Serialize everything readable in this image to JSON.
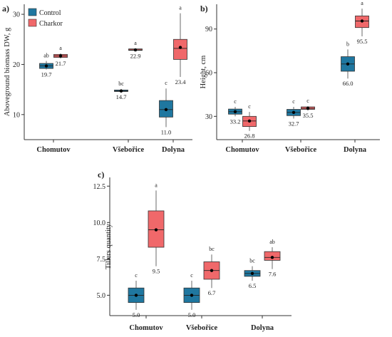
{
  "legend": [
    {
      "name": "Control",
      "color": "#1F77A0"
    },
    {
      "name": "Charkor",
      "color": "#F0686A"
    }
  ],
  "chart_data": [
    {
      "panel": "a)",
      "type": "box",
      "ylabel": "Aboveground biomass DW, g",
      "ylim": [
        5,
        32
      ],
      "yticks": [
        10,
        20,
        30
      ],
      "categories": [
        "Chomutov",
        "Všebořice",
        "Dolyna"
      ],
      "series": [
        {
          "name": "Control",
          "boxes": [
            {
              "whisker_low": 19.0,
              "q1": 19.2,
              "median": 19.7,
              "q3": 20.2,
              "whisker_high": 20.7,
              "mean": 19.7,
              "mean_label": "19.7",
              "letter": "ab"
            },
            {
              "whisker_low": 14.5,
              "q1": 14.6,
              "median": 14.7,
              "q3": 14.9,
              "whisker_high": 15.1,
              "mean": 14.7,
              "mean_label": "14.7",
              "letter": "bc"
            },
            {
              "whisker_low": 7.5,
              "q1": 9.5,
              "median": 11.0,
              "q3": 12.8,
              "whisker_high": 15.2,
              "mean": 11.0,
              "mean_label": "11.0",
              "letter": "c"
            }
          ]
        },
        {
          "name": "Charkor",
          "boxes": [
            {
              "whisker_low": 21.2,
              "q1": 21.4,
              "median": 21.7,
              "q3": 22.0,
              "whisker_high": 22.2,
              "mean": 21.7,
              "mean_label": "21.7",
              "letter": "a"
            },
            {
              "whisker_low": 22.7,
              "q1": 22.8,
              "median": 22.9,
              "q3": 23.1,
              "whisker_high": 23.2,
              "mean": 22.9,
              "mean_label": "22.9",
              "letter": "a"
            },
            {
              "whisker_low": 17.5,
              "q1": 21.0,
              "median": 23.2,
              "q3": 25.0,
              "whisker_high": 30.2,
              "mean": 23.4,
              "mean_label": "23.4",
              "letter": "a"
            }
          ]
        }
      ]
    },
    {
      "panel": "b)",
      "type": "box",
      "ylabel": "Height, cm",
      "ylim": [
        14,
        107
      ],
      "yticks": [
        30,
        60,
        90
      ],
      "categories": [
        "Chomutov",
        "Všebořice",
        "Dolyna"
      ],
      "series": [
        {
          "name": "Control",
          "boxes": [
            {
              "whisker_low": 30.0,
              "q1": 31.5,
              "median": 33.2,
              "q3": 35.0,
              "whisker_high": 36.5,
              "mean": 33.2,
              "mean_label": "33.2",
              "letter": "c"
            },
            {
              "whisker_low": 28.5,
              "q1": 30.5,
              "median": 32.7,
              "q3": 34.8,
              "whisker_high": 36.5,
              "mean": 32.7,
              "mean_label": "32.7",
              "letter": "c"
            },
            {
              "whisker_low": 56.0,
              "q1": 61.0,
              "median": 66.0,
              "q3": 71.0,
              "whisker_high": 76.0,
              "mean": 66.0,
              "mean_label": "66.0",
              "letter": "b"
            }
          ]
        },
        {
          "name": "Charkor",
          "boxes": [
            {
              "whisker_low": 20.0,
              "q1": 23.0,
              "median": 26.8,
              "q3": 30.0,
              "whisker_high": 33.0,
              "mean": 26.8,
              "mean_label": "26.8",
              "letter": "c"
            },
            {
              "whisker_low": 34.0,
              "q1": 34.8,
              "median": 35.5,
              "q3": 36.5,
              "whisker_high": 37.0,
              "mean": 35.5,
              "mean_label": "35.5",
              "letter": "c"
            },
            {
              "whisker_low": 85.0,
              "q1": 91.0,
              "median": 95.5,
              "q3": 99.0,
              "whisker_high": 104.0,
              "mean": 95.5,
              "mean_label": "95.5",
              "letter": "a"
            }
          ]
        }
      ]
    },
    {
      "panel": "c)",
      "type": "box",
      "ylabel": "Tillers quantity",
      "ylim": [
        3.6,
        13.1
      ],
      "yticks": [
        "5.0",
        "7.5",
        "10.0",
        "12.5"
      ],
      "categories": [
        "Chomutov",
        "Všebořice",
        "Dolyna"
      ],
      "series": [
        {
          "name": "Control",
          "boxes": [
            {
              "whisker_low": 4.0,
              "q1": 4.5,
              "median": 5.0,
              "q3": 5.5,
              "whisker_high": 6.0,
              "mean": 5.0,
              "mean_label": "5.0",
              "letter": "c"
            },
            {
              "whisker_low": 4.0,
              "q1": 4.5,
              "median": 5.0,
              "q3": 5.5,
              "whisker_high": 6.0,
              "mean": 5.0,
              "mean_label": "5.0",
              "letter": "c"
            },
            {
              "whisker_low": 6.0,
              "q1": 6.3,
              "median": 6.5,
              "q3": 6.7,
              "whisker_high": 7.0,
              "mean": 6.5,
              "mean_label": "6.5",
              "letter": "bc"
            }
          ]
        },
        {
          "name": "Charkor",
          "boxes": [
            {
              "whisker_low": 7.0,
              "q1": 8.3,
              "median": 9.5,
              "q3": 10.8,
              "whisker_high": 12.2,
              "mean": 9.5,
              "mean_label": "9.5",
              "letter": "a"
            },
            {
              "whisker_low": 5.5,
              "q1": 6.1,
              "median": 6.7,
              "q3": 7.3,
              "whisker_high": 7.8,
              "mean": 6.7,
              "mean_label": "6.7",
              "letter": "bc"
            },
            {
              "whisker_low": 6.8,
              "q1": 7.4,
              "median": 7.6,
              "q3": 8.0,
              "whisker_high": 8.3,
              "mean": 7.6,
              "mean_label": "7.6",
              "letter": "ab"
            }
          ]
        }
      ]
    }
  ]
}
